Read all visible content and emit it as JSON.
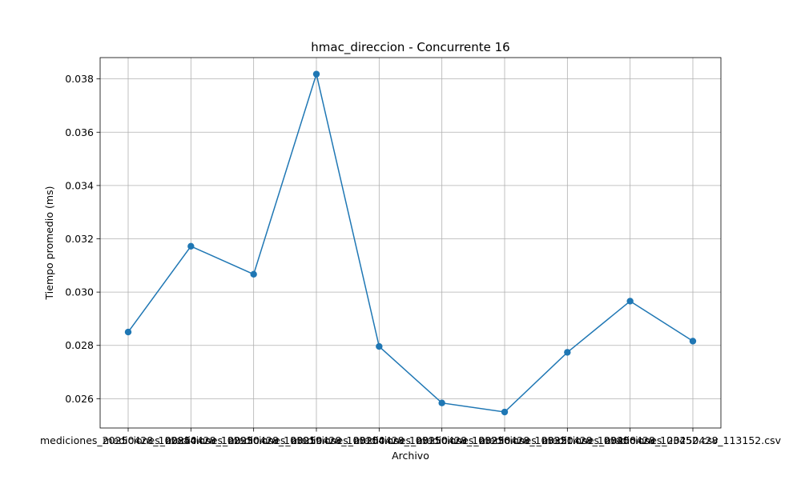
{
  "chart_data": {
    "type": "line",
    "title": "hmac_direccion - Concurrente 16",
    "xlabel": "Archivo",
    "ylabel": "Tiempo promedio (ms)",
    "categories": [
      "mediciones_20250428_102844.csv",
      "mediciones_20250428_102930.csv",
      "mediciones_20250428_103019.csv",
      "mediciones_20250428_103104.csv",
      "mediciones_20250428_103150.csv",
      "mediciones_20250428_103236.csv",
      "mediciones_20250428_103321.csv",
      "mediciones_20250428_103406.csv",
      "mediciones_20250428_103452.csv",
      "mediciones_20250428_113152.csv"
    ],
    "values": [
      0.0285,
      0.03172,
      0.03067,
      0.03818,
      0.02796,
      0.02584,
      0.0255,
      0.02774,
      0.02966,
      0.02816
    ],
    "ylim": [
      0.0249,
      0.0388
    ],
    "yticks": [
      0.026,
      0.028,
      0.03,
      0.032,
      0.034,
      0.036,
      0.038
    ],
    "ytick_labels": [
      "0.026",
      "0.028",
      "0.030",
      "0.032",
      "0.034",
      "0.036",
      "0.038"
    ],
    "grid": true,
    "line_color": "#1f77b4"
  }
}
